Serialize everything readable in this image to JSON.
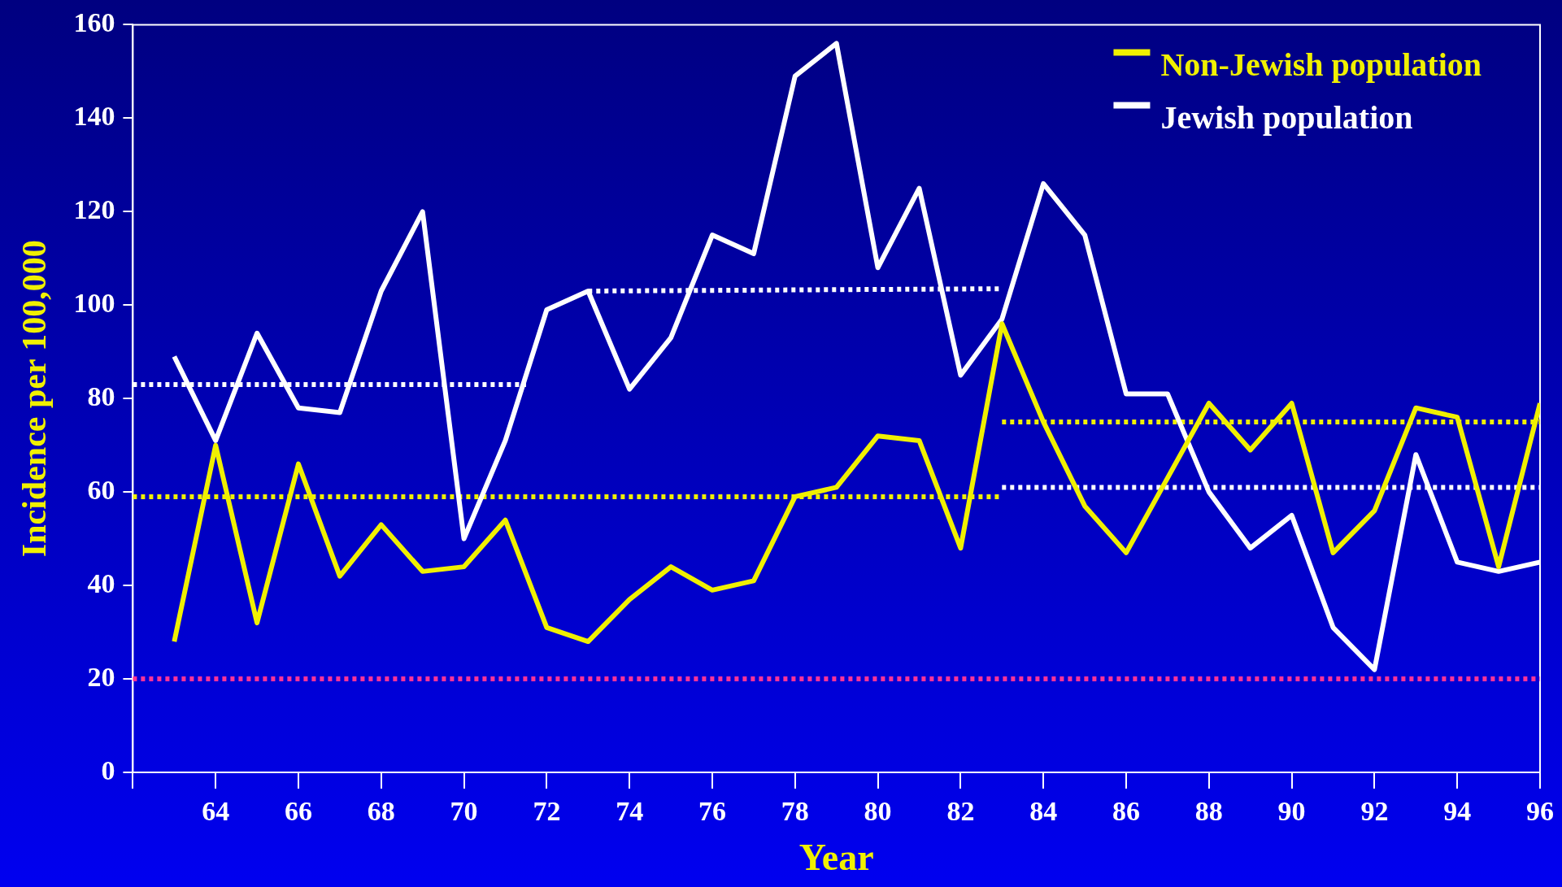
{
  "chart_data": {
    "type": "line",
    "xlabel": "Year",
    "ylabel": "Incidence per 100,000",
    "x": [
      63,
      64,
      65,
      66,
      67,
      68,
      69,
      70,
      71,
      72,
      73,
      74,
      75,
      76,
      77,
      78,
      79,
      80,
      81,
      82,
      83,
      84,
      85,
      86,
      87,
      88,
      89,
      90,
      91,
      92,
      93,
      94,
      95,
      96
    ],
    "series": [
      {
        "name": "Non-Jewish population",
        "color": "#f0f000",
        "values": [
          28,
          70,
          32,
          66,
          42,
          53,
          43,
          44,
          54,
          31,
          28,
          37,
          44,
          39,
          41,
          59,
          61,
          72,
          71,
          48,
          96,
          75,
          57,
          47,
          63,
          79,
          69,
          79,
          47,
          56,
          78,
          76,
          44,
          79
        ]
      },
      {
        "name": "Jewish population",
        "color": "#ffffff",
        "values": [
          89,
          71,
          94,
          78,
          77,
          103,
          120,
          50,
          71,
          99,
          103,
          82,
          93,
          115,
          111,
          149,
          156,
          108,
          125,
          85,
          97,
          126,
          115,
          81,
          81,
          60,
          48,
          55,
          31,
          22,
          68,
          45,
          43,
          45
        ]
      },
      {
        "color": "#ffffff",
        "line_style": "dotted",
        "x": [
          62,
          71.5
        ],
        "values": [
          83,
          83
        ]
      },
      {
        "color": "#ffffff",
        "line_style": "dotted",
        "x": [
          73,
          83
        ],
        "values": [
          103,
          103.5
        ]
      },
      {
        "color": "#ffffff",
        "line_style": "dotted",
        "x": [
          83,
          96
        ],
        "values": [
          61,
          61
        ]
      },
      {
        "color": "#f0f000",
        "line_style": "dotted",
        "x": [
          62,
          83
        ],
        "values": [
          59,
          59
        ]
      },
      {
        "color": "#f0f000",
        "line_style": "dotted",
        "x": [
          83,
          96
        ],
        "values": [
          75,
          75
        ]
      }
    ],
    "ref_lines": [
      {
        "axis": "y",
        "value": 20,
        "color": "#ff3399",
        "line_style": "dotted"
      }
    ],
    "xlim": [
      62,
      96
    ],
    "xticks": [
      {
        "value": 62,
        "label": null
      },
      64,
      66,
      68,
      70,
      72,
      74,
      76,
      78,
      80,
      82,
      84,
      86,
      88,
      90,
      92,
      94,
      96
    ],
    "ylim": [
      0,
      160
    ],
    "yticks": [
      0,
      20,
      40,
      60,
      80,
      100,
      120,
      140,
      160
    ],
    "grid": false,
    "legend": "top right",
    "marker": "none",
    "line_style": "solid"
  }
}
